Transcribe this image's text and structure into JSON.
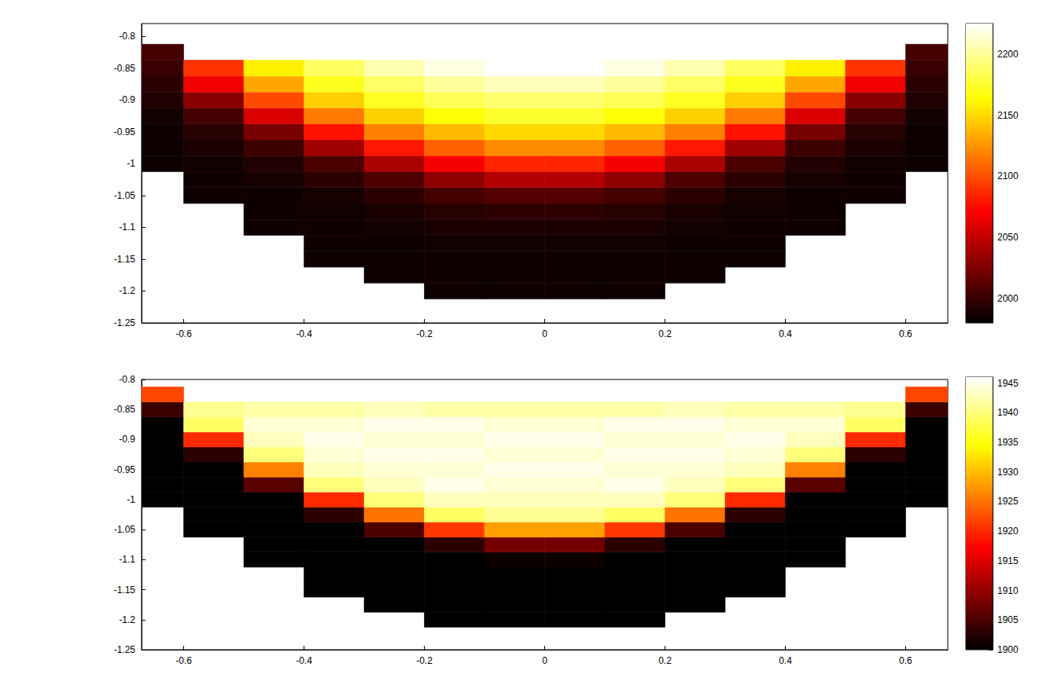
{
  "chart_data": [
    {
      "type": "heatmap",
      "grid": false,
      "xlim": [
        -0.67,
        0.67
      ],
      "xticks": [
        -0.6,
        -0.4,
        -0.2,
        0,
        0.2,
        0.4,
        0.6
      ],
      "ylim": [
        -1.25,
        -0.78
      ],
      "yticks": [
        -1.25,
        -1.2,
        -1.15,
        -1.1,
        -1.05,
        -1,
        -0.95,
        -0.9,
        -0.85,
        -0.8
      ],
      "x": [
        -0.65,
        -0.55,
        -0.45,
        -0.35,
        -0.25,
        -0.15,
        -0.05,
        0.05,
        0.15,
        0.25,
        0.35,
        0.45,
        0.55,
        0.65
      ],
      "y": [
        -1.2,
        -1.175,
        -1.15,
        -1.125,
        -1.1,
        -1.075,
        -1.05,
        -1.025,
        -1,
        -0.975,
        -0.95,
        -0.925,
        -0.9,
        -0.875,
        -0.85,
        -0.825
      ],
      "cells": [
        [
          null,
          null,
          null,
          null,
          null,
          1985,
          1985,
          1985,
          1985,
          null,
          null,
          null,
          null,
          null
        ],
        [
          null,
          null,
          null,
          null,
          1985,
          1985,
          1985,
          1985,
          1985,
          1985,
          null,
          null,
          null,
          null
        ],
        [
          null,
          null,
          null,
          1985,
          1985,
          1985,
          1985,
          1985,
          1985,
          1985,
          1985,
          null,
          null,
          null
        ],
        [
          null,
          null,
          null,
          1985,
          1985,
          1986,
          1987,
          1987,
          1986,
          1985,
          1985,
          null,
          null,
          null
        ],
        [
          null,
          null,
          1985,
          1985,
          1987,
          1989,
          1990,
          1990,
          1989,
          1987,
          1985,
          1985,
          null,
          null
        ],
        [
          null,
          null,
          1985,
          1986,
          1989,
          1994,
          1997,
          1997,
          1994,
          1989,
          1986,
          1985,
          null,
          null
        ],
        [
          null,
          1985,
          1985,
          1988,
          1996,
          2005,
          2010,
          2010,
          2005,
          1996,
          1988,
          1985,
          1985,
          null
        ],
        [
          null,
          1985,
          1988,
          1995,
          2008,
          2031,
          2045,
          2045,
          2031,
          2008,
          1995,
          1988,
          1985,
          null
        ],
        [
          1985,
          1986,
          1992,
          2007,
          2041,
          2069,
          2085,
          2085,
          2069,
          2041,
          2007,
          1992,
          1986,
          1985
        ],
        [
          1985,
          1989,
          2002,
          2038,
          2080,
          2107,
          2122,
          2122,
          2107,
          2080,
          2038,
          2002,
          1989,
          1985
        ],
        [
          1985,
          1994,
          2023,
          2078,
          2118,
          2139,
          2150,
          2150,
          2139,
          2118,
          2078,
          2023,
          1994,
          1985
        ],
        [
          1987,
          2004,
          2059,
          2116,
          2147,
          2165,
          2175,
          2175,
          2165,
          2147,
          2116,
          2059,
          2004,
          1987
        ],
        [
          1992,
          2029,
          2098,
          2146,
          2172,
          2184,
          2190,
          2190,
          2184,
          2172,
          2146,
          2098,
          2029,
          1992
        ],
        [
          1995,
          2067,
          2132,
          2171,
          2188,
          2201,
          2208,
          2208,
          2201,
          2188,
          2171,
          2132,
          2067,
          1995
        ],
        [
          2000,
          2090,
          2159,
          2187,
          2206,
          2218,
          2225,
          2225,
          2218,
          2206,
          2187,
          2159,
          2090,
          2000
        ],
        [
          2005,
          null,
          null,
          null,
          null,
          null,
          null,
          null,
          null,
          null,
          null,
          null,
          null,
          2005
        ]
      ],
      "colorbar": {
        "range": [
          1980,
          2225
        ],
        "ticks": [
          2000,
          2050,
          2100,
          2150,
          2200
        ]
      }
    },
    {
      "type": "heatmap",
      "grid": false,
      "xlim": [
        -0.67,
        0.67
      ],
      "xticks": [
        -0.6,
        -0.4,
        -0.2,
        0,
        0.2,
        0.4,
        0.6
      ],
      "ylim": [
        -1.25,
        -0.8
      ],
      "yticks": [
        -1.25,
        -1.2,
        -1.15,
        -1.1,
        -1.05,
        -1,
        -0.95,
        -0.9,
        -0.85,
        -0.8
      ],
      "x": [
        -0.65,
        -0.55,
        -0.45,
        -0.35,
        -0.25,
        -0.15,
        -0.05,
        0.05,
        0.15,
        0.25,
        0.35,
        0.45,
        0.55,
        0.65
      ],
      "y": [
        -1.2,
        -1.175,
        -1.15,
        -1.125,
        -1.1,
        -1.075,
        -1.05,
        -1.025,
        -1,
        -0.975,
        -0.95,
        -0.925,
        -0.9,
        -0.875,
        -0.85,
        -0.825
      ],
      "cells": [
        [
          null,
          null,
          null,
          null,
          null,
          1900,
          1900,
          1900,
          1900,
          null,
          null,
          null,
          null,
          null
        ],
        [
          null,
          null,
          null,
          null,
          1900,
          1900,
          1900,
          1900,
          1900,
          1900,
          null,
          null,
          null,
          null
        ],
        [
          null,
          null,
          null,
          1900,
          1900,
          1900,
          1900,
          1900,
          1900,
          1900,
          1900,
          null,
          null,
          null
        ],
        [
          null,
          null,
          null,
          1900,
          1900,
          1900,
          1900,
          1900,
          1900,
          1900,
          1900,
          null,
          null,
          null
        ],
        [
          null,
          null,
          1900,
          1900,
          1900,
          1900,
          1901,
          1901,
          1900,
          1900,
          1900,
          1900,
          null,
          null
        ],
        [
          null,
          null,
          1900,
          1900,
          1900,
          1903,
          1908,
          1908,
          1903,
          1900,
          1900,
          1900,
          null,
          null
        ],
        [
          null,
          1900,
          1900,
          1900,
          1905,
          1921,
          1928,
          1928,
          1921,
          1905,
          1900,
          1900,
          1900,
          null
        ],
        [
          null,
          1900,
          1900,
          1903,
          1925,
          1939,
          1941,
          1941,
          1939,
          1925,
          1903,
          1900,
          1900,
          null
        ],
        [
          1900,
          1900,
          1900,
          1920,
          1940,
          1943,
          1943,
          1943,
          1943,
          1940,
          1920,
          1900,
          1900,
          1900
        ],
        [
          1900,
          1900,
          1906,
          1940,
          1943,
          1945,
          1944,
          1944,
          1945,
          1943,
          1940,
          1906,
          1900,
          1900
        ],
        [
          1900,
          1900,
          1926,
          1943,
          1944,
          1944,
          1945,
          1945,
          1944,
          1944,
          1943,
          1926,
          1900,
          1900
        ],
        [
          1900,
          1903,
          1940,
          1944,
          1945,
          1945,
          1944,
          1944,
          1945,
          1945,
          1944,
          1940,
          1903,
          1900
        ],
        [
          1900,
          1920,
          1943,
          1945,
          1944,
          1944,
          1945,
          1945,
          1944,
          1944,
          1945,
          1943,
          1920,
          1900
        ],
        [
          1900,
          1939,
          1944,
          1944,
          1945,
          1945,
          1944,
          1944,
          1945,
          1945,
          1944,
          1944,
          1939,
          1900
        ],
        [
          1904,
          1941,
          1942,
          1942,
          1943,
          1942,
          1942,
          1942,
          1942,
          1943,
          1942,
          1942,
          1941,
          1904
        ],
        [
          1922,
          null,
          null,
          null,
          null,
          null,
          null,
          null,
          null,
          null,
          null,
          null,
          null,
          1922
        ]
      ],
      "colorbar": {
        "range": [
          1900,
          1946
        ],
        "ticks": [
          1900,
          1905,
          1910,
          1915,
          1920,
          1925,
          1930,
          1935,
          1940,
          1945
        ]
      }
    }
  ]
}
